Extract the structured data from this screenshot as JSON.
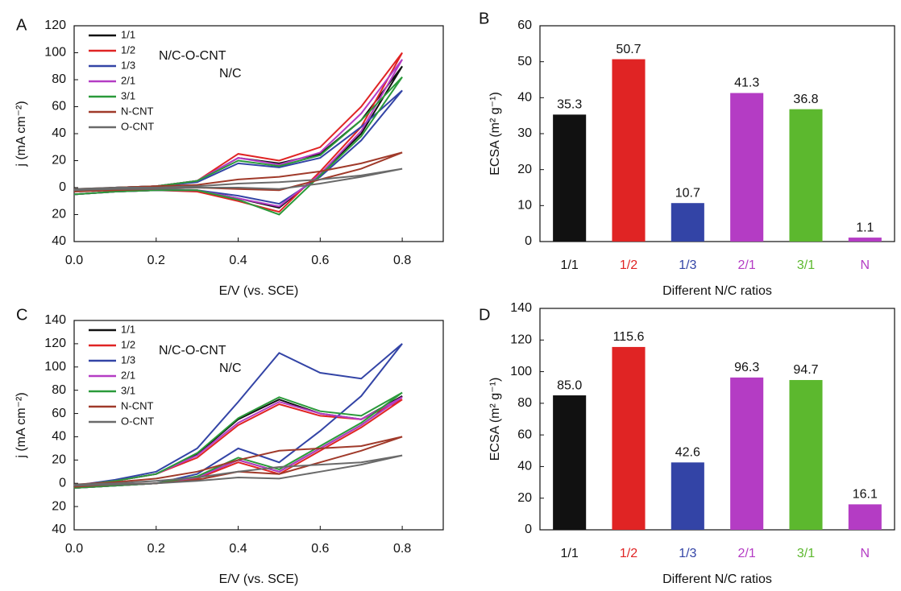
{
  "chart_data": [
    {
      "panel": "A",
      "type": "line",
      "xlabel": "E/V (vs. SCE)",
      "ylabel": "j (mA cm⁻²)",
      "annotations": [
        "N/C-O-CNT",
        "N/C"
      ],
      "x": [
        0,
        0.1,
        0.2,
        0.3,
        0.4,
        0.5,
        0.6,
        0.7,
        0.8,
        0.7,
        0.6,
        0.5,
        0.4,
        0.3,
        0.2,
        0.1,
        0
      ],
      "xlim": [
        0,
        0.9
      ],
      "xticks": [
        {
          "value": 0,
          "label": "0.0"
        },
        0.2,
        0.4,
        0.6,
        0.8
      ],
      "ylim": [
        -40,
        120
      ],
      "yticks": [
        {
          "value": -40,
          "label": "40"
        },
        {
          "value": -20,
          "label": "20"
        },
        0,
        20,
        40,
        60,
        80,
        100,
        120
      ],
      "series": [
        {
          "name": "1/1",
          "color": "#111111",
          "values": [
            -2,
            0,
            1,
            5,
            22,
            18,
            25,
            50,
            90,
            40,
            10,
            -15,
            -8,
            -2,
            -2,
            -3,
            -5
          ]
        },
        {
          "name": "1/2",
          "color": "#e02424",
          "values": [
            -2,
            0,
            1,
            5,
            25,
            20,
            30,
            60,
            100,
            45,
            12,
            -18,
            -10,
            -3,
            -2,
            -3,
            -5
          ]
        },
        {
          "name": "1/3",
          "color": "#3344a6",
          "values": [
            -2,
            0,
            1,
            4,
            18,
            15,
            22,
            45,
            72,
            35,
            8,
            -12,
            -6,
            -2,
            -2,
            -3,
            -5
          ]
        },
        {
          "name": "2/1",
          "color": "#b43cc4",
          "values": [
            -2,
            0,
            1,
            5,
            22,
            17,
            26,
            55,
            95,
            42,
            10,
            -14,
            -8,
            -2,
            -2,
            -3,
            -5
          ]
        },
        {
          "name": "3/1",
          "color": "#2a9a3a",
          "values": [
            -2,
            0,
            1,
            5,
            20,
            16,
            24,
            50,
            82,
            38,
            9,
            -20,
            -9,
            -2,
            -2,
            -3,
            -5
          ]
        },
        {
          "name": "N-CNT",
          "color": "#a03a2a",
          "values": [
            -1,
            0,
            1,
            2,
            6,
            8,
            12,
            18,
            26,
            14,
            6,
            -2,
            -1,
            0,
            -1,
            -2,
            -3
          ]
        },
        {
          "name": "O-CNT",
          "color": "#6a6a6a",
          "values": [
            -1,
            0,
            0,
            1,
            3,
            4,
            6,
            9,
            14,
            8,
            3,
            -1,
            0,
            0,
            -1,
            -1,
            -2
          ]
        }
      ]
    },
    {
      "panel": "B",
      "type": "bar",
      "xlabel": "Different N/C ratios",
      "ylabel": "ECSA (m² g⁻¹)",
      "categories": [
        "1/1",
        "1/2",
        "1/3",
        "2/1",
        "3/1",
        "N"
      ],
      "category_colors": [
        "#111111",
        "#e02424",
        "#3344a6",
        "#b43cc4",
        "#5cb82e",
        "#b43cc4"
      ],
      "values": [
        35.3,
        50.7,
        10.7,
        41.3,
        36.8,
        1.1
      ],
      "value_labels": [
        "35.3",
        "50.7",
        "10.7",
        "41.3",
        "36.8",
        "1.1"
      ],
      "ylim": [
        0,
        60
      ],
      "yticks": [
        0,
        10,
        20,
        30,
        40,
        50,
        60
      ]
    },
    {
      "panel": "C",
      "type": "line",
      "xlabel": "E/V (vs. SCE)",
      "ylabel": "j (mA cm⁻²)",
      "annotations": [
        "N/C-O-CNT",
        "N/C"
      ],
      "x": [
        0,
        0.1,
        0.2,
        0.3,
        0.4,
        0.5,
        0.6,
        0.7,
        0.8,
        0.7,
        0.6,
        0.5,
        0.4,
        0.3,
        0.2,
        0.1,
        0
      ],
      "xlim": [
        0,
        0.9
      ],
      "xticks": [
        {
          "value": 0,
          "label": "0.0"
        },
        0.2,
        0.4,
        0.6,
        0.8
      ],
      "ylim": [
        -40,
        140
      ],
      "yticks": [
        {
          "value": -40,
          "label": "40"
        },
        {
          "value": -20,
          "label": "20"
        },
        0,
        20,
        40,
        60,
        80,
        100,
        120,
        140
      ],
      "series": [
        {
          "name": "1/1",
          "color": "#111111",
          "values": [
            -2,
            2,
            8,
            25,
            55,
            72,
            60,
            55,
            75,
            50,
            30,
            10,
            20,
            5,
            0,
            -2,
            -4
          ]
        },
        {
          "name": "1/2",
          "color": "#e02424",
          "values": [
            -2,
            2,
            8,
            22,
            50,
            68,
            58,
            55,
            72,
            48,
            28,
            8,
            18,
            4,
            0,
            -2,
            -4
          ]
        },
        {
          "name": "1/3",
          "color": "#3344a6",
          "values": [
            -2,
            3,
            10,
            30,
            70,
            112,
            95,
            90,
            120,
            75,
            45,
            18,
            30,
            8,
            0,
            -2,
            -4
          ]
        },
        {
          "name": "2/1",
          "color": "#b43cc4",
          "values": [
            -2,
            2,
            8,
            24,
            52,
            70,
            60,
            55,
            74,
            50,
            30,
            10,
            20,
            5,
            0,
            -2,
            -4
          ]
        },
        {
          "name": "3/1",
          "color": "#2a9a3a",
          "values": [
            -2,
            2,
            8,
            26,
            56,
            74,
            62,
            58,
            78,
            52,
            32,
            12,
            22,
            6,
            0,
            -2,
            -4
          ]
        },
        {
          "name": "N-CNT",
          "color": "#a03a2a",
          "values": [
            -1,
            1,
            4,
            10,
            20,
            28,
            30,
            32,
            40,
            28,
            18,
            8,
            10,
            3,
            0,
            -1,
            -3
          ]
        },
        {
          "name": "O-CNT",
          "color": "#6a6a6a",
          "values": [
            -1,
            0,
            2,
            5,
            10,
            14,
            16,
            18,
            24,
            16,
            10,
            4,
            5,
            2,
            0,
            -1,
            -2
          ]
        }
      ]
    },
    {
      "panel": "D",
      "type": "bar",
      "xlabel": "Different N/C ratios",
      "ylabel": "ECSA (m² g⁻¹)",
      "categories": [
        "1/1",
        "1/2",
        "1/3",
        "2/1",
        "3/1",
        "N"
      ],
      "category_colors": [
        "#111111",
        "#e02424",
        "#3344a6",
        "#b43cc4",
        "#5cb82e",
        "#b43cc4"
      ],
      "values": [
        85.0,
        115.6,
        42.6,
        96.3,
        94.7,
        16.1
      ],
      "value_labels": [
        "85.0",
        "115.6",
        "42.6",
        "96.3",
        "94.7",
        "16.1"
      ],
      "ylim": [
        0,
        140
      ],
      "yticks": [
        0,
        20,
        40,
        60,
        80,
        100,
        120,
        140
      ]
    }
  ]
}
